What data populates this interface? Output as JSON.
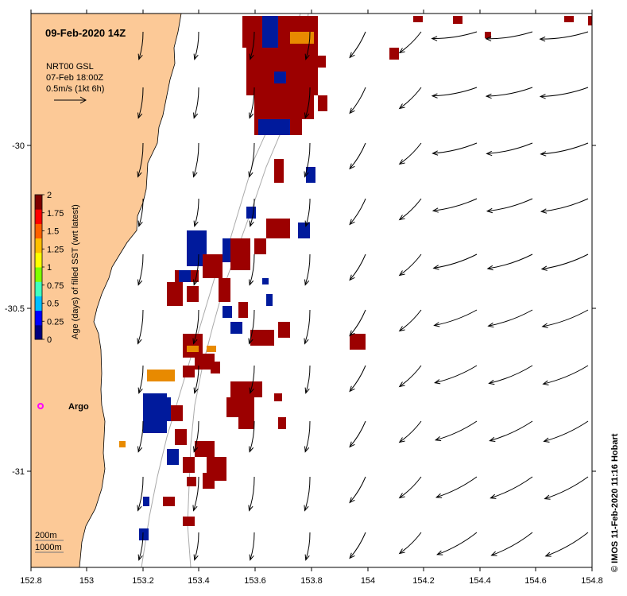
{
  "title": "09-Feb-2020 14Z",
  "current_info": {
    "line1": "NRT00 GSL",
    "line2": "07-Feb 18:00Z",
    "line3": "0.5m/s (1kt 6h)"
  },
  "colorbar": {
    "label": "Age (days) of filled SST (wrt latest)",
    "ticks": [
      "2",
      "1.75",
      "1.5",
      "1.25",
      "1",
      "0.75",
      "0.5",
      "0.25",
      "0"
    ],
    "colors": [
      "#00007f",
      "#0000ff",
      "#00bfff",
      "#40ffbf",
      "#80ff00",
      "#ffff00",
      "#ffbf00",
      "#ff6000",
      "#ff0000",
      "#7f0000"
    ]
  },
  "argo_label": "Argo",
  "depth_legend": {
    "d1": "200m",
    "d2": "1000m"
  },
  "credit": "© IMOS 11-Feb-2020 11:16 Hobart",
  "x_ticks": [
    "152.8",
    "153",
    "153.2",
    "153.4",
    "153.6",
    "153.8",
    "154",
    "154.2",
    "154.4",
    "154.6",
    "154.8"
  ],
  "y_ticks": [
    "-30",
    "-30.5",
    "-31"
  ],
  "map_extent": {
    "lon": [
      152.8,
      154.8
    ],
    "lat": [
      -31.25,
      -29.6
    ]
  },
  "colors": {
    "land": "#fcc997",
    "sst_old": "#9c0000",
    "sst_recent": "#001a9c",
    "sst_mid": "#e88a00",
    "argo": "#ff00ff"
  }
}
